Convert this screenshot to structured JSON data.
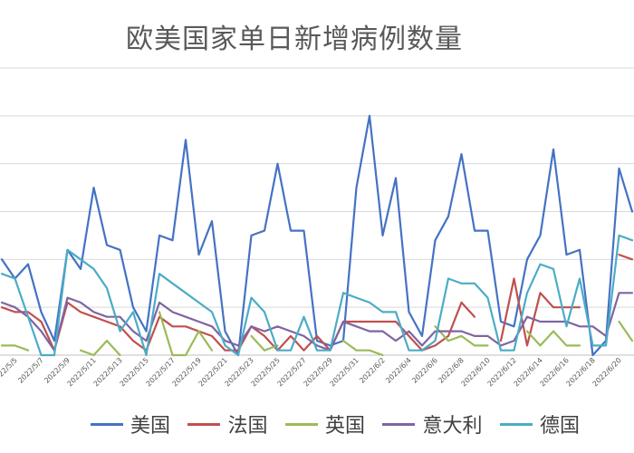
{
  "chart_data": {
    "type": "line",
    "title": "欧美国家单日新增病例数量",
    "xlabel": "",
    "ylabel": "",
    "grid": true,
    "legend_position": "bottom",
    "x_tick_labels": [
      "2022/5/5",
      "2022/5/7",
      "2022/5/9",
      "2022/5/11",
      "2022/5/13",
      "2022/5/15",
      "2022/5/17",
      "2022/5/19",
      "2022/5/21",
      "2022/5/23",
      "2022/5/25",
      "2022/5/27",
      "2022/5/29",
      "2022/5/31",
      "2022/6/2",
      "2022/6/4",
      "2022/6/6",
      "2022/6/8",
      "2022/6/10",
      "2022/6/12",
      "2022/6/14",
      "2022/6/16",
      "2022/6/18",
      "2022/6/20"
    ],
    "x": [
      "2022/5/4",
      "2022/5/5",
      "2022/5/6",
      "2022/5/7",
      "2022/5/8",
      "2022/5/9",
      "2022/5/10",
      "2022/5/11",
      "2022/5/12",
      "2022/5/13",
      "2022/5/14",
      "2022/5/15",
      "2022/5/16",
      "2022/5/17",
      "2022/5/18",
      "2022/5/19",
      "2022/5/20",
      "2022/5/21",
      "2022/5/22",
      "2022/5/23",
      "2022/5/24",
      "2022/5/25",
      "2022/5/26",
      "2022/5/27",
      "2022/5/28",
      "2022/5/29",
      "2022/5/30",
      "2022/5/31",
      "2022/6/1",
      "2022/6/2",
      "2022/6/3",
      "2022/6/4",
      "2022/6/5",
      "2022/6/6",
      "2022/6/7",
      "2022/6/8",
      "2022/6/9",
      "2022/6/10",
      "2022/6/11",
      "2022/6/12",
      "2022/6/13",
      "2022/6/14",
      "2022/6/15",
      "2022/6/16",
      "2022/6/17",
      "2022/6/18",
      "2022/6/19",
      "2022/6/20",
      "2022/6/21"
    ],
    "series": [
      {
        "name": "美国",
        "color": "#4472c4",
        "values": [
          20,
          16,
          19,
          9,
          3,
          22,
          18,
          35,
          23,
          22,
          10,
          5,
          25,
          24,
          45,
          21,
          28,
          5,
          0,
          25,
          26,
          40,
          26,
          26,
          3,
          2,
          3,
          35,
          50,
          25,
          37,
          9,
          4,
          24,
          29,
          42,
          26,
          26,
          7,
          6,
          20,
          25,
          43,
          21,
          22,
          0,
          3,
          39,
          30
        ]
      },
      {
        "name": "法国",
        "color": "#c0504d",
        "values": [
          10,
          9,
          9,
          7,
          1,
          11,
          9,
          8,
          7,
          6,
          3,
          1,
          8,
          6,
          6,
          5,
          4,
          1,
          1,
          6,
          4,
          1,
          4,
          1,
          4,
          1,
          7,
          7,
          7,
          7,
          7,
          4,
          1,
          2,
          4,
          11,
          8,
          null,
          3,
          16,
          2,
          13,
          10,
          10,
          10,
          null,
          null,
          21,
          20
        ]
      },
      {
        "name": "英国",
        "color": "#9bbb59",
        "values": [
          2,
          2,
          1,
          null,
          null,
          null,
          1,
          0,
          3,
          0,
          null,
          null,
          9,
          0,
          0,
          5,
          1,
          null,
          null,
          4,
          1,
          2,
          null,
          null,
          null,
          null,
          3,
          1,
          1,
          0,
          null,
          null,
          null,
          6,
          3,
          4,
          2,
          2,
          null,
          null,
          5,
          2,
          5,
          2,
          2,
          null,
          null,
          7,
          3
        ]
      },
      {
        "name": "意大利",
        "color": "#8064a2",
        "values": [
          11,
          10,
          8,
          5,
          1,
          12,
          11,
          9,
          8,
          8,
          5,
          3,
          11,
          9,
          8,
          7,
          6,
          3,
          2,
          6,
          5,
          6,
          5,
          4,
          2,
          1,
          7,
          6,
          5,
          5,
          3,
          5,
          2,
          5,
          5,
          5,
          4,
          4,
          2,
          3,
          8,
          7,
          7,
          7,
          6,
          6,
          4,
          13,
          13
        ]
      },
      {
        "name": "德国",
        "color": "#4bacc6",
        "values": [
          17,
          16,
          8,
          0,
          0,
          22,
          20,
          18,
          14,
          5,
          9,
          0,
          17,
          15,
          13,
          11,
          9,
          2,
          0,
          12,
          9,
          1,
          1,
          8,
          1,
          1,
          13,
          12,
          11,
          9,
          9,
          1,
          1,
          3,
          16,
          15,
          15,
          12,
          1,
          1,
          13,
          19,
          18,
          6,
          16,
          2,
          2,
          25,
          24
        ]
      }
    ]
  }
}
